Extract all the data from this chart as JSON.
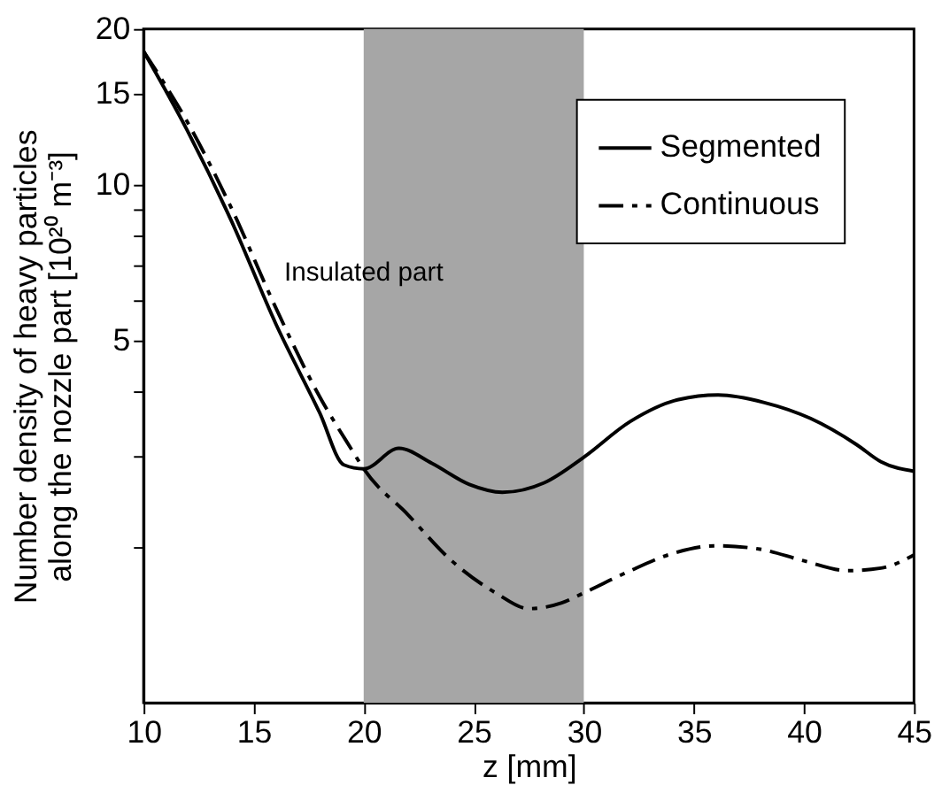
{
  "chart_data": {
    "type": "line",
    "xlabel": "z [mm]",
    "ylabel": "Number density of heavy particles\nalong the nozzle part [10²⁰ m⁻³]",
    "log": "y",
    "xlim": [
      10,
      45
    ],
    "xticks": [
      10,
      15,
      20,
      25,
      30,
      35,
      40,
      45
    ],
    "ylim": [
      1,
      20
    ],
    "yticks": [
      {
        "value": 2,
        "label": null
      },
      {
        "value": 3,
        "label": null
      },
      {
        "value": 4,
        "label": null
      },
      5,
      {
        "value": 6,
        "label": null
      },
      {
        "value": 7,
        "label": null
      },
      {
        "value": 8,
        "label": null
      },
      {
        "value": 9,
        "label": null
      },
      10,
      15,
      20
    ],
    "grid": false,
    "legend": "top right",
    "bands": [
      {
        "axis": "x",
        "from": 20,
        "to": 30,
        "label": "Insulated part",
        "color": "#a6a6a6"
      }
    ],
    "series": [
      {
        "name": "Segmented",
        "color": "#000000",
        "line_style": "solid",
        "x": [
          10,
          12,
          14,
          16,
          18,
          19.1,
          20,
          21.6,
          23.1,
          24.8,
          26.3,
          28.2,
          30,
          32.1,
          34.3,
          36.1,
          38.2,
          40.3,
          42.4,
          43.5,
          45
        ],
        "values": [
          18.1,
          12.7,
          8.5,
          5.4,
          3.63,
          2.88,
          2.83,
          3.1,
          2.9,
          2.64,
          2.55,
          2.66,
          2.98,
          3.49,
          3.85,
          3.93,
          3.8,
          3.54,
          3.15,
          2.92,
          2.8
        ]
      },
      {
        "name": "Continuous",
        "color": "#000000",
        "line_style": "dashed",
        "x": [
          10,
          12,
          14,
          16,
          18,
          19.5,
          20,
          22,
          24,
          26,
          27.5,
          29,
          30,
          32,
          34,
          36,
          38,
          40,
          42,
          43.5,
          45
        ],
        "values": [
          18.1,
          13.2,
          9.0,
          5.8,
          3.9,
          3.06,
          2.83,
          2.31,
          1.88,
          1.63,
          1.52,
          1.56,
          1.63,
          1.79,
          1.94,
          2.01,
          1.98,
          1.88,
          1.8,
          1.82,
          1.93
        ]
      }
    ]
  }
}
